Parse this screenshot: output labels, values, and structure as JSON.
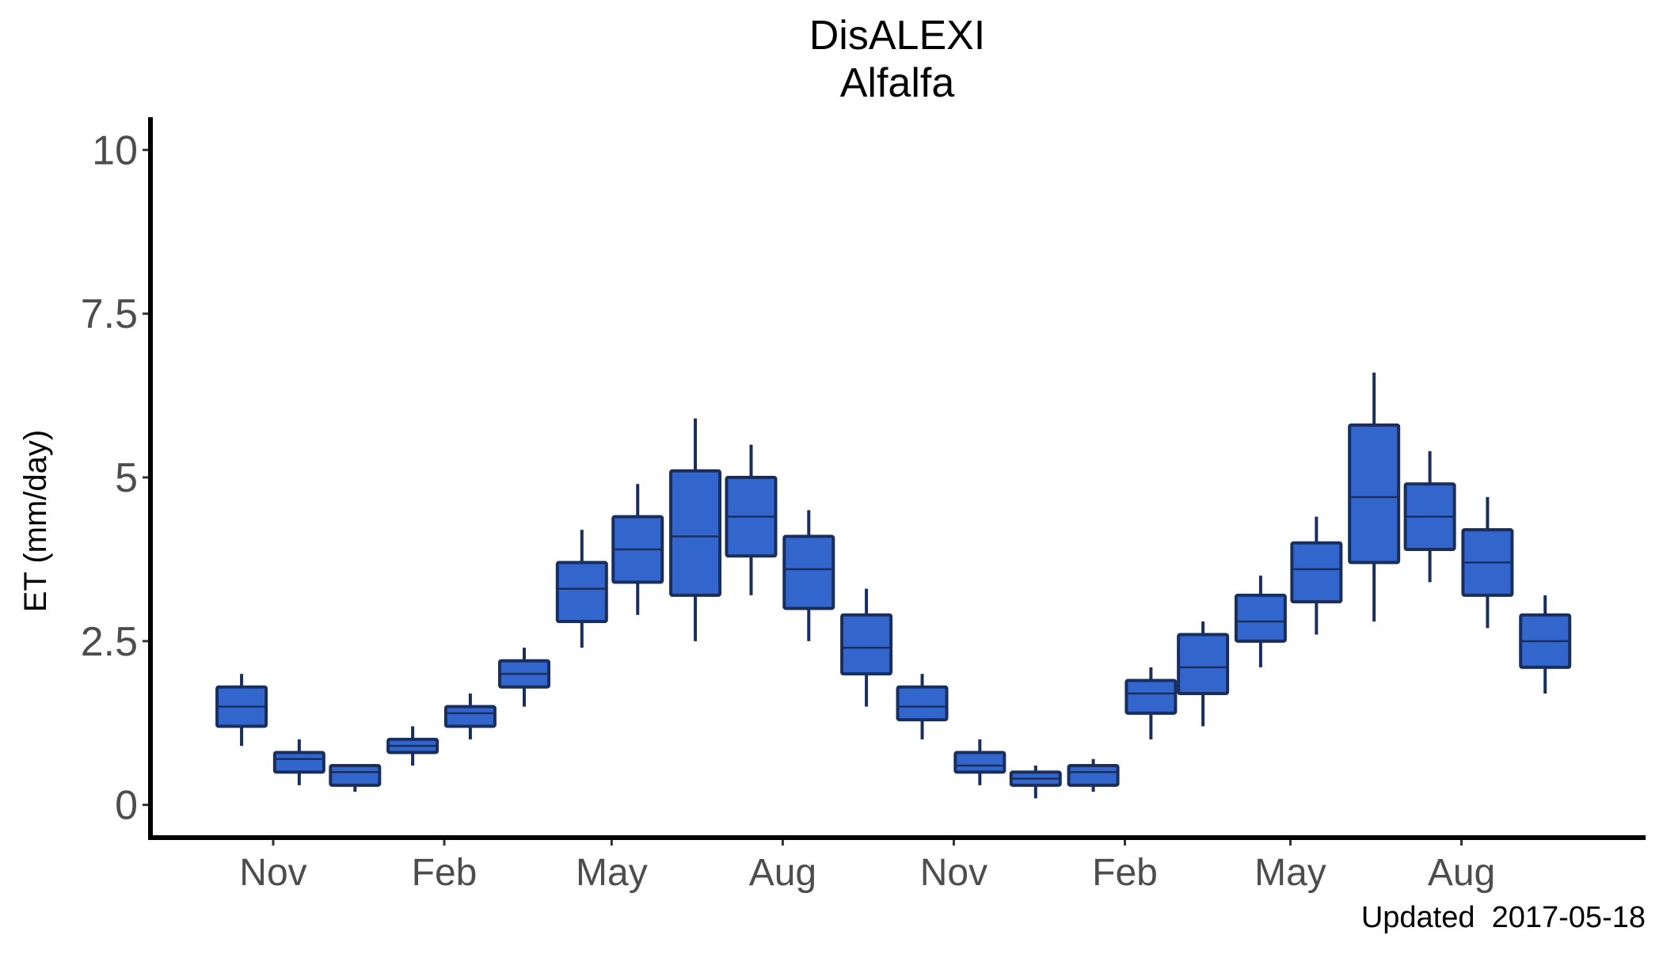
{
  "chart_data": {
    "type": "box",
    "title": "DisALEXI",
    "subtitle": "Alfalfa",
    "xlabel": "",
    "ylabel": "ET (mm/day)",
    "ylim": [
      -0.5,
      10.5
    ],
    "y_ticks": [
      0,
      2.5,
      5,
      7.5,
      10
    ],
    "y_tick_labels": [
      "0",
      "2.5",
      "5",
      "7.5",
      "10"
    ],
    "x_axis": "date",
    "xlim": [
      "2015-08-27",
      "2017-11-08"
    ],
    "x_ticks": [
      "2015-11-01",
      "2016-02-01",
      "2016-05-01",
      "2016-08-01",
      "2016-11-01",
      "2017-02-01",
      "2017-05-01",
      "2017-08-01"
    ],
    "x_tick_labels": [
      "Nov",
      "Feb",
      "May",
      "Aug",
      "Nov",
      "Feb",
      "May",
      "Aug"
    ],
    "caption": "Updated  2017-05-18",
    "grid": false,
    "legend": "none",
    "colors": {
      "box_fill": "#3366cc",
      "box_stroke": "#1a2e5e",
      "axis": "#000000"
    },
    "boxes": [
      {
        "month": "2015-10",
        "min": 0.9,
        "q1": 1.2,
        "median": 1.5,
        "q3": 1.8,
        "max": 2.0
      },
      {
        "month": "2015-11",
        "min": 0.3,
        "q1": 0.5,
        "median": 0.7,
        "q3": 0.8,
        "max": 1.0
      },
      {
        "month": "2015-12",
        "min": 0.2,
        "q1": 0.3,
        "median": 0.5,
        "q3": 0.6,
        "max": 0.6
      },
      {
        "month": "2016-01",
        "min": 0.6,
        "q1": 0.8,
        "median": 0.9,
        "q3": 1.0,
        "max": 1.2
      },
      {
        "month": "2016-02",
        "min": 1.0,
        "q1": 1.2,
        "median": 1.4,
        "q3": 1.5,
        "max": 1.7
      },
      {
        "month": "2016-03",
        "min": 1.5,
        "q1": 1.8,
        "median": 2.0,
        "q3": 2.2,
        "max": 2.4
      },
      {
        "month": "2016-04",
        "min": 2.4,
        "q1": 2.8,
        "median": 3.3,
        "q3": 3.7,
        "max": 4.2
      },
      {
        "month": "2016-05",
        "min": 2.9,
        "q1": 3.4,
        "median": 3.9,
        "q3": 4.4,
        "max": 4.9
      },
      {
        "month": "2016-06",
        "min": 2.5,
        "q1": 3.2,
        "median": 4.1,
        "q3": 5.1,
        "max": 5.9
      },
      {
        "month": "2016-07",
        "min": 3.2,
        "q1": 3.8,
        "median": 4.4,
        "q3": 5.0,
        "max": 5.5
      },
      {
        "month": "2016-08",
        "min": 2.5,
        "q1": 3.0,
        "median": 3.6,
        "q3": 4.1,
        "max": 4.5
      },
      {
        "month": "2016-09",
        "min": 1.5,
        "q1": 2.0,
        "median": 2.4,
        "q3": 2.9,
        "max": 3.3
      },
      {
        "month": "2016-10",
        "min": 1.0,
        "q1": 1.3,
        "median": 1.5,
        "q3": 1.8,
        "max": 2.0
      },
      {
        "month": "2016-11",
        "min": 0.3,
        "q1": 0.5,
        "median": 0.6,
        "q3": 0.8,
        "max": 1.0
      },
      {
        "month": "2016-12",
        "min": 0.1,
        "q1": 0.3,
        "median": 0.4,
        "q3": 0.5,
        "max": 0.6
      },
      {
        "month": "2017-01",
        "min": 0.2,
        "q1": 0.3,
        "median": 0.5,
        "q3": 0.6,
        "max": 0.7
      },
      {
        "month": "2017-02",
        "min": 1.0,
        "q1": 1.4,
        "median": 1.7,
        "q3": 1.9,
        "max": 2.1
      },
      {
        "month": "2017-03",
        "min": 1.2,
        "q1": 1.7,
        "median": 2.1,
        "q3": 2.6,
        "max": 2.8
      },
      {
        "month": "2017-04",
        "min": 2.1,
        "q1": 2.5,
        "median": 2.8,
        "q3": 3.2,
        "max": 3.5
      },
      {
        "month": "2017-05",
        "min": 2.6,
        "q1": 3.1,
        "median": 3.6,
        "q3": 4.0,
        "max": 4.4
      },
      {
        "month": "2017-06",
        "min": 2.8,
        "q1": 3.7,
        "median": 4.7,
        "q3": 5.8,
        "max": 6.6
      },
      {
        "month": "2017-07",
        "min": 3.4,
        "q1": 3.9,
        "median": 4.4,
        "q3": 4.9,
        "max": 5.4
      },
      {
        "month": "2017-08",
        "min": 2.7,
        "q1": 3.2,
        "median": 3.7,
        "q3": 4.2,
        "max": 4.7
      },
      {
        "month": "2017-09",
        "min": 1.7,
        "q1": 2.1,
        "median": 2.5,
        "q3": 2.9,
        "max": 3.2
      }
    ]
  }
}
